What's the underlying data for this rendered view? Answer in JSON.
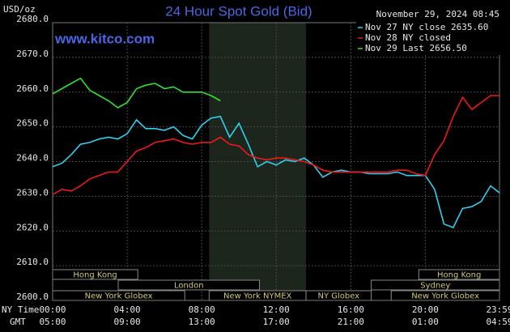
{
  "chart_data": {
    "type": "line",
    "title": "24 Hour Spot Gold (Bid)",
    "y_unit": "USD/oz",
    "timestamp": "November 29, 2024 08:45",
    "watermark": "www.kitco.com",
    "x_axis_labels": [
      "NY Time",
      "GMT"
    ],
    "x": [
      0,
      0.5,
      1,
      1.5,
      2,
      2.5,
      3,
      3.5,
      4,
      4.5,
      5,
      5.5,
      6,
      6.5,
      7,
      7.5,
      8,
      8.5,
      9,
      9.5,
      10,
      10.5,
      11,
      11.5,
      12,
      12.5,
      13,
      13.5,
      14,
      14.5,
      15,
      15.5,
      16,
      16.5,
      17,
      17.5,
      18,
      18.5,
      19,
      19.5,
      20,
      20.5,
      21,
      21.5,
      22,
      22.5,
      23,
      23.5,
      23.98
    ],
    "xlim": [
      0,
      23.98
    ],
    "xticks": [
      {
        "value": 0,
        "label": "00:00"
      },
      {
        "value": 4,
        "label": "04:00"
      },
      {
        "value": 8,
        "label": "08:00"
      },
      {
        "value": 12,
        "label": "12:00"
      },
      {
        "value": 16,
        "label": "16:00"
      },
      {
        "value": 20,
        "label": "20:00"
      },
      {
        "value": 23.98,
        "label": "23:59"
      }
    ],
    "x2ticks": [
      {
        "value": 0,
        "label": "05:00"
      },
      {
        "value": 4,
        "label": "09:00"
      },
      {
        "value": 8,
        "label": "13:00"
      },
      {
        "value": 12,
        "label": "17:00"
      },
      {
        "value": 16,
        "label": "21:00"
      },
      {
        "value": 20,
        "label": "01:00"
      },
      {
        "value": 23.98,
        "label": "04:59"
      }
    ],
    "ylim": [
      2600,
      2680
    ],
    "yticks": [
      {
        "value": 2600,
        "label": "2600.0"
      },
      {
        "value": 2610,
        "label": "2610.0"
      },
      {
        "value": 2620,
        "label": "2620.0"
      },
      {
        "value": 2630,
        "label": "2630.0"
      },
      {
        "value": 2640,
        "label": "2640.0"
      },
      {
        "value": 2650,
        "label": "2650.0"
      },
      {
        "value": 2660,
        "label": "2660.0"
      },
      {
        "value": 2670,
        "label": "2670.0"
      },
      {
        "value": 2680,
        "label": "2680.0"
      }
    ],
    "grid": true,
    "series": [
      {
        "name": "Nov 27 NY close 2635.60",
        "color": "#30d0f0",
        "values": [
          2638.5,
          2639.5,
          2642,
          2645,
          2645.5,
          2646.5,
          2647,
          2646.5,
          2648,
          2652,
          2649.5,
          2649.5,
          2649,
          2650,
          2647.5,
          2646.5,
          2650.5,
          2652.5,
          2653,
          2647,
          2651,
          2645,
          2638.5,
          2640,
          2639,
          2640.5,
          2640,
          2641,
          2639,
          2635.5,
          2637,
          2637.5,
          2637,
          2637,
          2636.5,
          2636.5,
          2636.5,
          2637,
          2636,
          2636,
          2636,
          2632,
          2622,
          2621,
          2626.5,
          2627,
          2628.5,
          2633,
          2631
        ]
      },
      {
        "name": "Nov 28 NY closed",
        "color": "#f01818",
        "values": [
          2630.5,
          2632,
          2631.5,
          2633,
          2635,
          2636,
          2637,
          2637,
          2640,
          2643,
          2644,
          2645.5,
          2646,
          2646.5,
          2645.5,
          2645,
          2645.5,
          2645.5,
          2647,
          2645,
          2644.5,
          2642,
          2641,
          2640.5,
          2641,
          2641,
          2640.5,
          2640,
          2639,
          2637.5,
          2637,
          2637,
          2637,
          2637,
          2637,
          2637,
          2637,
          2637.5,
          2637.5,
          2636.5,
          2636,
          2642,
          2646,
          2653,
          2658.5,
          2655,
          2657,
          2659,
          2659
        ]
      },
      {
        "name": "Nov 29 Last 2656.50",
        "color": "#30e030",
        "values": [
          2659.5,
          2661,
          2662.5,
          2664,
          2660.5,
          2659,
          2657.5,
          2655.5,
          2657,
          2661,
          2662,
          2662.5,
          2661,
          2661.5,
          2660,
          2660,
          2660,
          2659,
          2657.5,
          null,
          null,
          null,
          null,
          null,
          null,
          null,
          null,
          null,
          null,
          null,
          null,
          null,
          null,
          null,
          null,
          null,
          null,
          null,
          null,
          null,
          null,
          null,
          null,
          null,
          null,
          null,
          null,
          null,
          null
        ]
      }
    ],
    "sessions": [
      "Hong Kong",
      "Hong Kong",
      "London",
      "Sydney",
      "New York Globex",
      "New York NYMEX",
      "NY Globex",
      "New York Globex"
    ]
  }
}
